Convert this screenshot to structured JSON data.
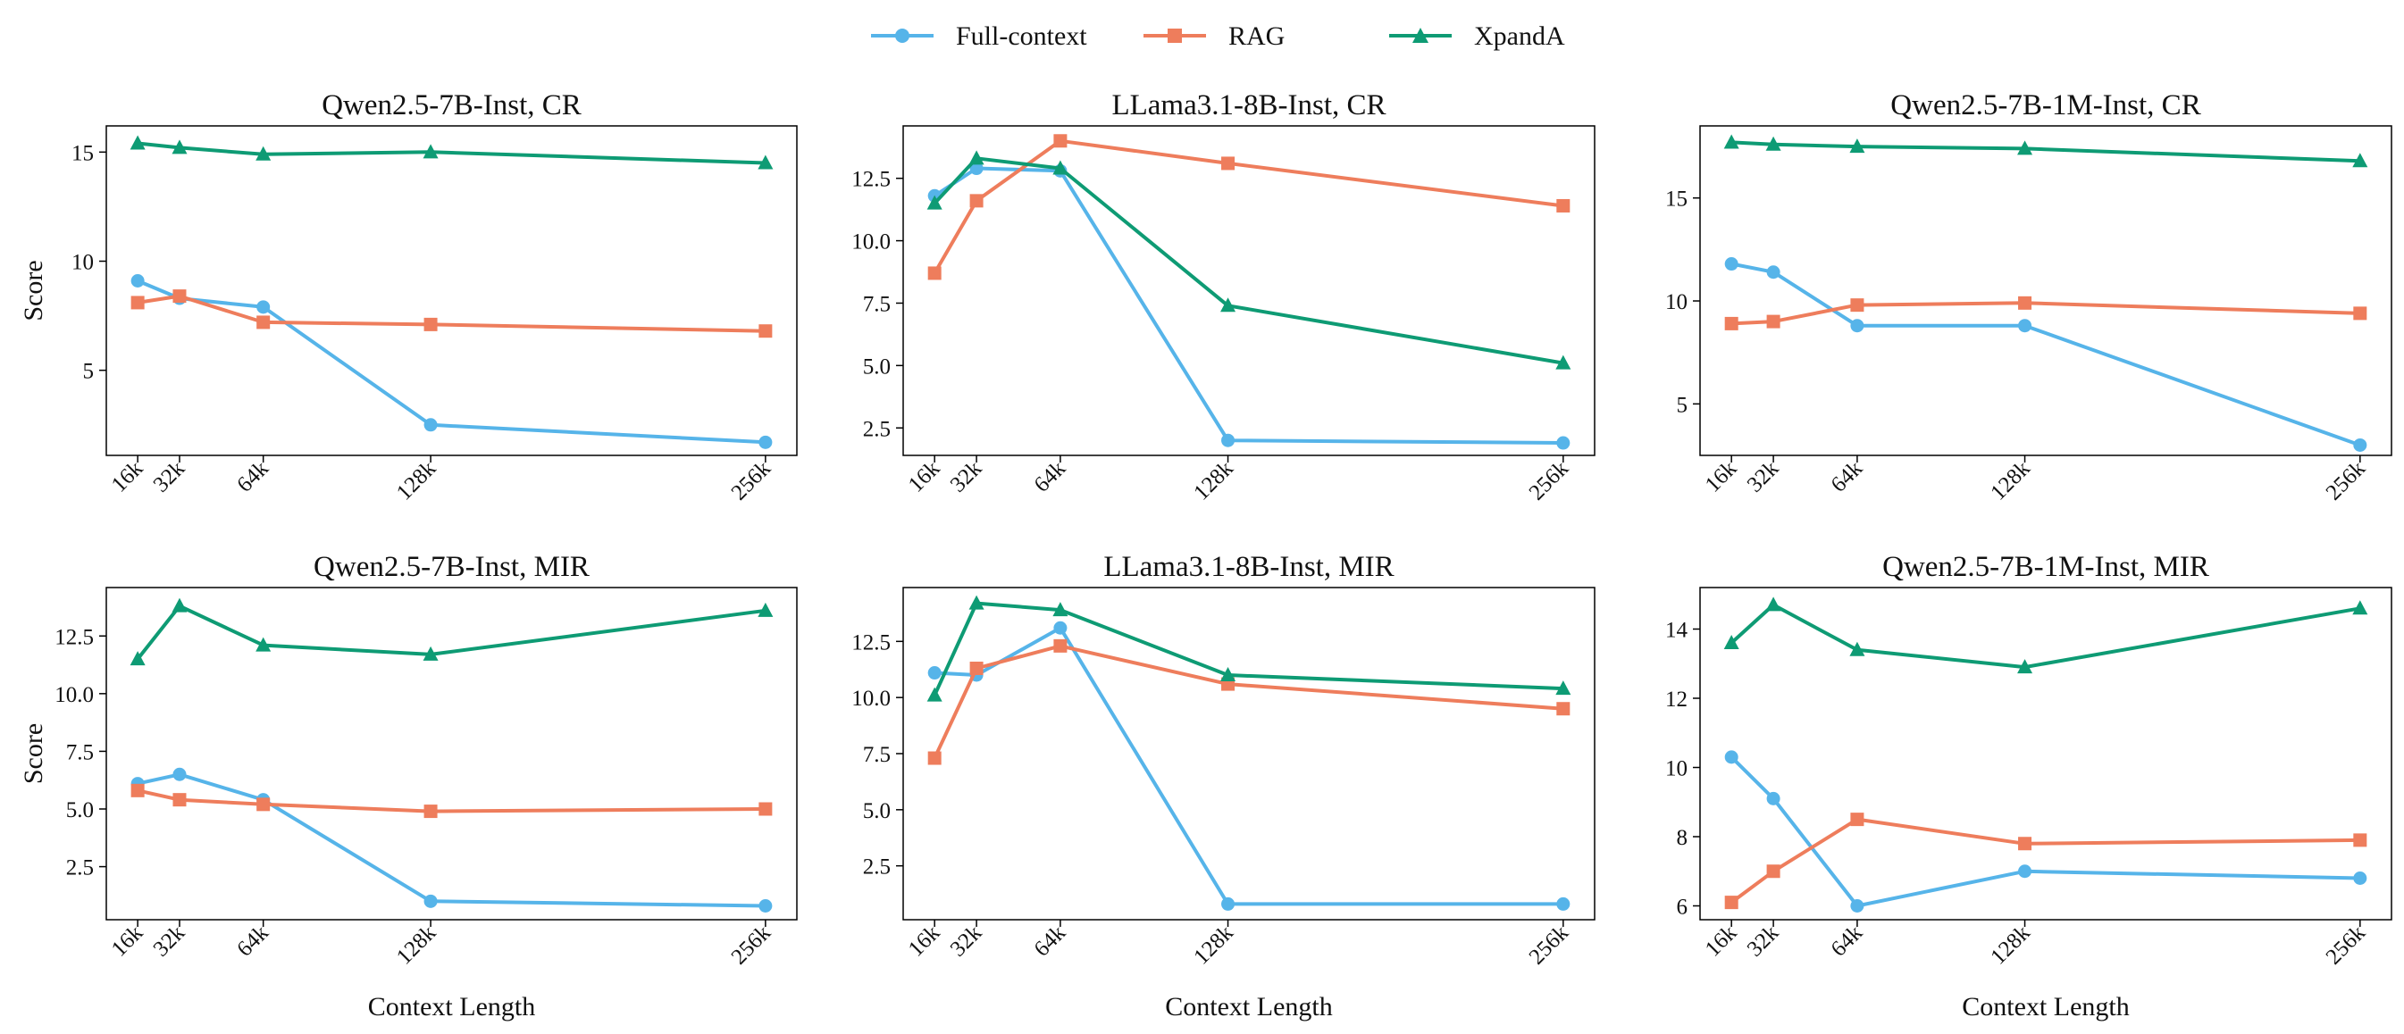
{
  "legend": [
    {
      "name": "Full-context",
      "color": "#56b4e9",
      "marker": "circle"
    },
    {
      "name": "RAG",
      "color": "#ee7d5c",
      "marker": "square"
    },
    {
      "name": "XpandA",
      "color": "#0e9b74",
      "marker": "triangle"
    }
  ],
  "chart_data": [
    {
      "type": "line",
      "title": "Qwen2.5-7B-Inst, CR",
      "xlabel": "",
      "ylabel": "Score",
      "x": [
        16,
        32,
        64,
        128,
        256
      ],
      "xticklabels": [
        "16k",
        "32k",
        "64k",
        "128k",
        "256k"
      ],
      "yticks": [
        5,
        10,
        15
      ],
      "yticklabels": [
        "5",
        "10",
        "15"
      ],
      "ylim": [
        1.1,
        16.2
      ],
      "series": [
        {
          "name": "Full-context",
          "values": [
            9.1,
            8.3,
            7.9,
            2.5,
            1.7
          ]
        },
        {
          "name": "RAG",
          "values": [
            8.1,
            8.4,
            7.2,
            7.1,
            6.8
          ]
        },
        {
          "name": "XpandA",
          "values": [
            15.4,
            15.2,
            14.9,
            15.0,
            14.5
          ]
        }
      ]
    },
    {
      "type": "line",
      "title": "LLama3.1-8B-Inst, CR",
      "xlabel": "",
      "ylabel": "",
      "x": [
        16,
        32,
        64,
        128,
        256
      ],
      "xticklabels": [
        "16k",
        "32k",
        "64k",
        "128k",
        "256k"
      ],
      "yticks": [
        2.5,
        5.0,
        7.5,
        10.0,
        12.5
      ],
      "yticklabels": [
        "2.5",
        "5.0",
        "7.5",
        "10.0",
        "12.5"
      ],
      "ylim": [
        1.4,
        14.6
      ],
      "series": [
        {
          "name": "Full-context",
          "values": [
            11.8,
            12.9,
            12.8,
            2.0,
            1.9
          ]
        },
        {
          "name": "RAG",
          "values": [
            8.7,
            11.6,
            14.0,
            13.1,
            11.4
          ]
        },
        {
          "name": "XpandA",
          "values": [
            11.5,
            13.3,
            12.9,
            7.4,
            5.1
          ]
        }
      ]
    },
    {
      "type": "line",
      "title": "Qwen2.5-7B-1M-Inst, CR",
      "xlabel": "",
      "ylabel": "",
      "x": [
        16,
        32,
        64,
        128,
        256
      ],
      "xticklabels": [
        "16k",
        "32k",
        "64k",
        "128k",
        "256k"
      ],
      "yticks": [
        5,
        10,
        15
      ],
      "yticklabels": [
        "5",
        "10",
        "15"
      ],
      "ylim": [
        2.5,
        18.5
      ],
      "series": [
        {
          "name": "Full-context",
          "values": [
            11.8,
            11.4,
            8.8,
            8.8,
            3.0
          ]
        },
        {
          "name": "RAG",
          "values": [
            8.9,
            9.0,
            9.8,
            9.9,
            9.4
          ]
        },
        {
          "name": "XpandA",
          "values": [
            17.7,
            17.6,
            17.5,
            17.4,
            16.8
          ]
        }
      ]
    },
    {
      "type": "line",
      "title": "Qwen2.5-7B-Inst, MIR",
      "xlabel": "Context Length",
      "ylabel": "Score",
      "x": [
        16,
        32,
        64,
        128,
        256
      ],
      "xticklabels": [
        "16k",
        "32k",
        "64k",
        "128k",
        "256k"
      ],
      "yticks": [
        2.5,
        5.0,
        7.5,
        10.0,
        12.5
      ],
      "yticklabels": [
        "2.5",
        "5.0",
        "7.5",
        "10.0",
        "12.5"
      ],
      "ylim": [
        0.2,
        14.6
      ],
      "series": [
        {
          "name": "Full-context",
          "values": [
            6.1,
            6.5,
            5.4,
            1.0,
            0.8
          ]
        },
        {
          "name": "RAG",
          "values": [
            5.8,
            5.4,
            5.2,
            4.9,
            5.0
          ]
        },
        {
          "name": "XpandA",
          "values": [
            11.5,
            13.8,
            12.1,
            11.7,
            13.6
          ]
        }
      ]
    },
    {
      "type": "line",
      "title": "LLama3.1-8B-Inst, MIR",
      "xlabel": "Context Length",
      "ylabel": "",
      "x": [
        16,
        32,
        64,
        128,
        256
      ],
      "xticklabels": [
        "16k",
        "32k",
        "64k",
        "128k",
        "256k"
      ],
      "yticks": [
        2.5,
        5.0,
        7.5,
        10.0,
        12.5
      ],
      "yticklabels": [
        "2.5",
        "5.0",
        "7.5",
        "10.0",
        "12.5"
      ],
      "ylim": [
        0.1,
        14.9
      ],
      "series": [
        {
          "name": "Full-context",
          "values": [
            11.1,
            11.0,
            13.1,
            0.8,
            0.8
          ]
        },
        {
          "name": "RAG",
          "values": [
            7.3,
            11.3,
            12.3,
            10.6,
            9.5
          ]
        },
        {
          "name": "XpandA",
          "values": [
            10.1,
            14.2,
            13.9,
            11.0,
            10.4
          ]
        }
      ]
    },
    {
      "type": "line",
      "title": "Qwen2.5-7B-1M-Inst, MIR",
      "xlabel": "Context Length",
      "ylabel": "",
      "x": [
        16,
        32,
        64,
        128,
        256
      ],
      "xticklabels": [
        "16k",
        "32k",
        "64k",
        "128k",
        "256k"
      ],
      "yticks": [
        6,
        8,
        10,
        12,
        14
      ],
      "yticklabels": [
        "6",
        "8",
        "10",
        "12",
        "14"
      ],
      "ylim": [
        5.6,
        15.2
      ],
      "series": [
        {
          "name": "Full-context",
          "values": [
            10.3,
            9.1,
            6.0,
            7.0,
            6.8
          ]
        },
        {
          "name": "RAG",
          "values": [
            6.1,
            7.0,
            8.5,
            7.8,
            7.9
          ]
        },
        {
          "name": "XpandA",
          "values": [
            13.6,
            14.7,
            13.4,
            12.9,
            14.6
          ]
        }
      ]
    }
  ]
}
